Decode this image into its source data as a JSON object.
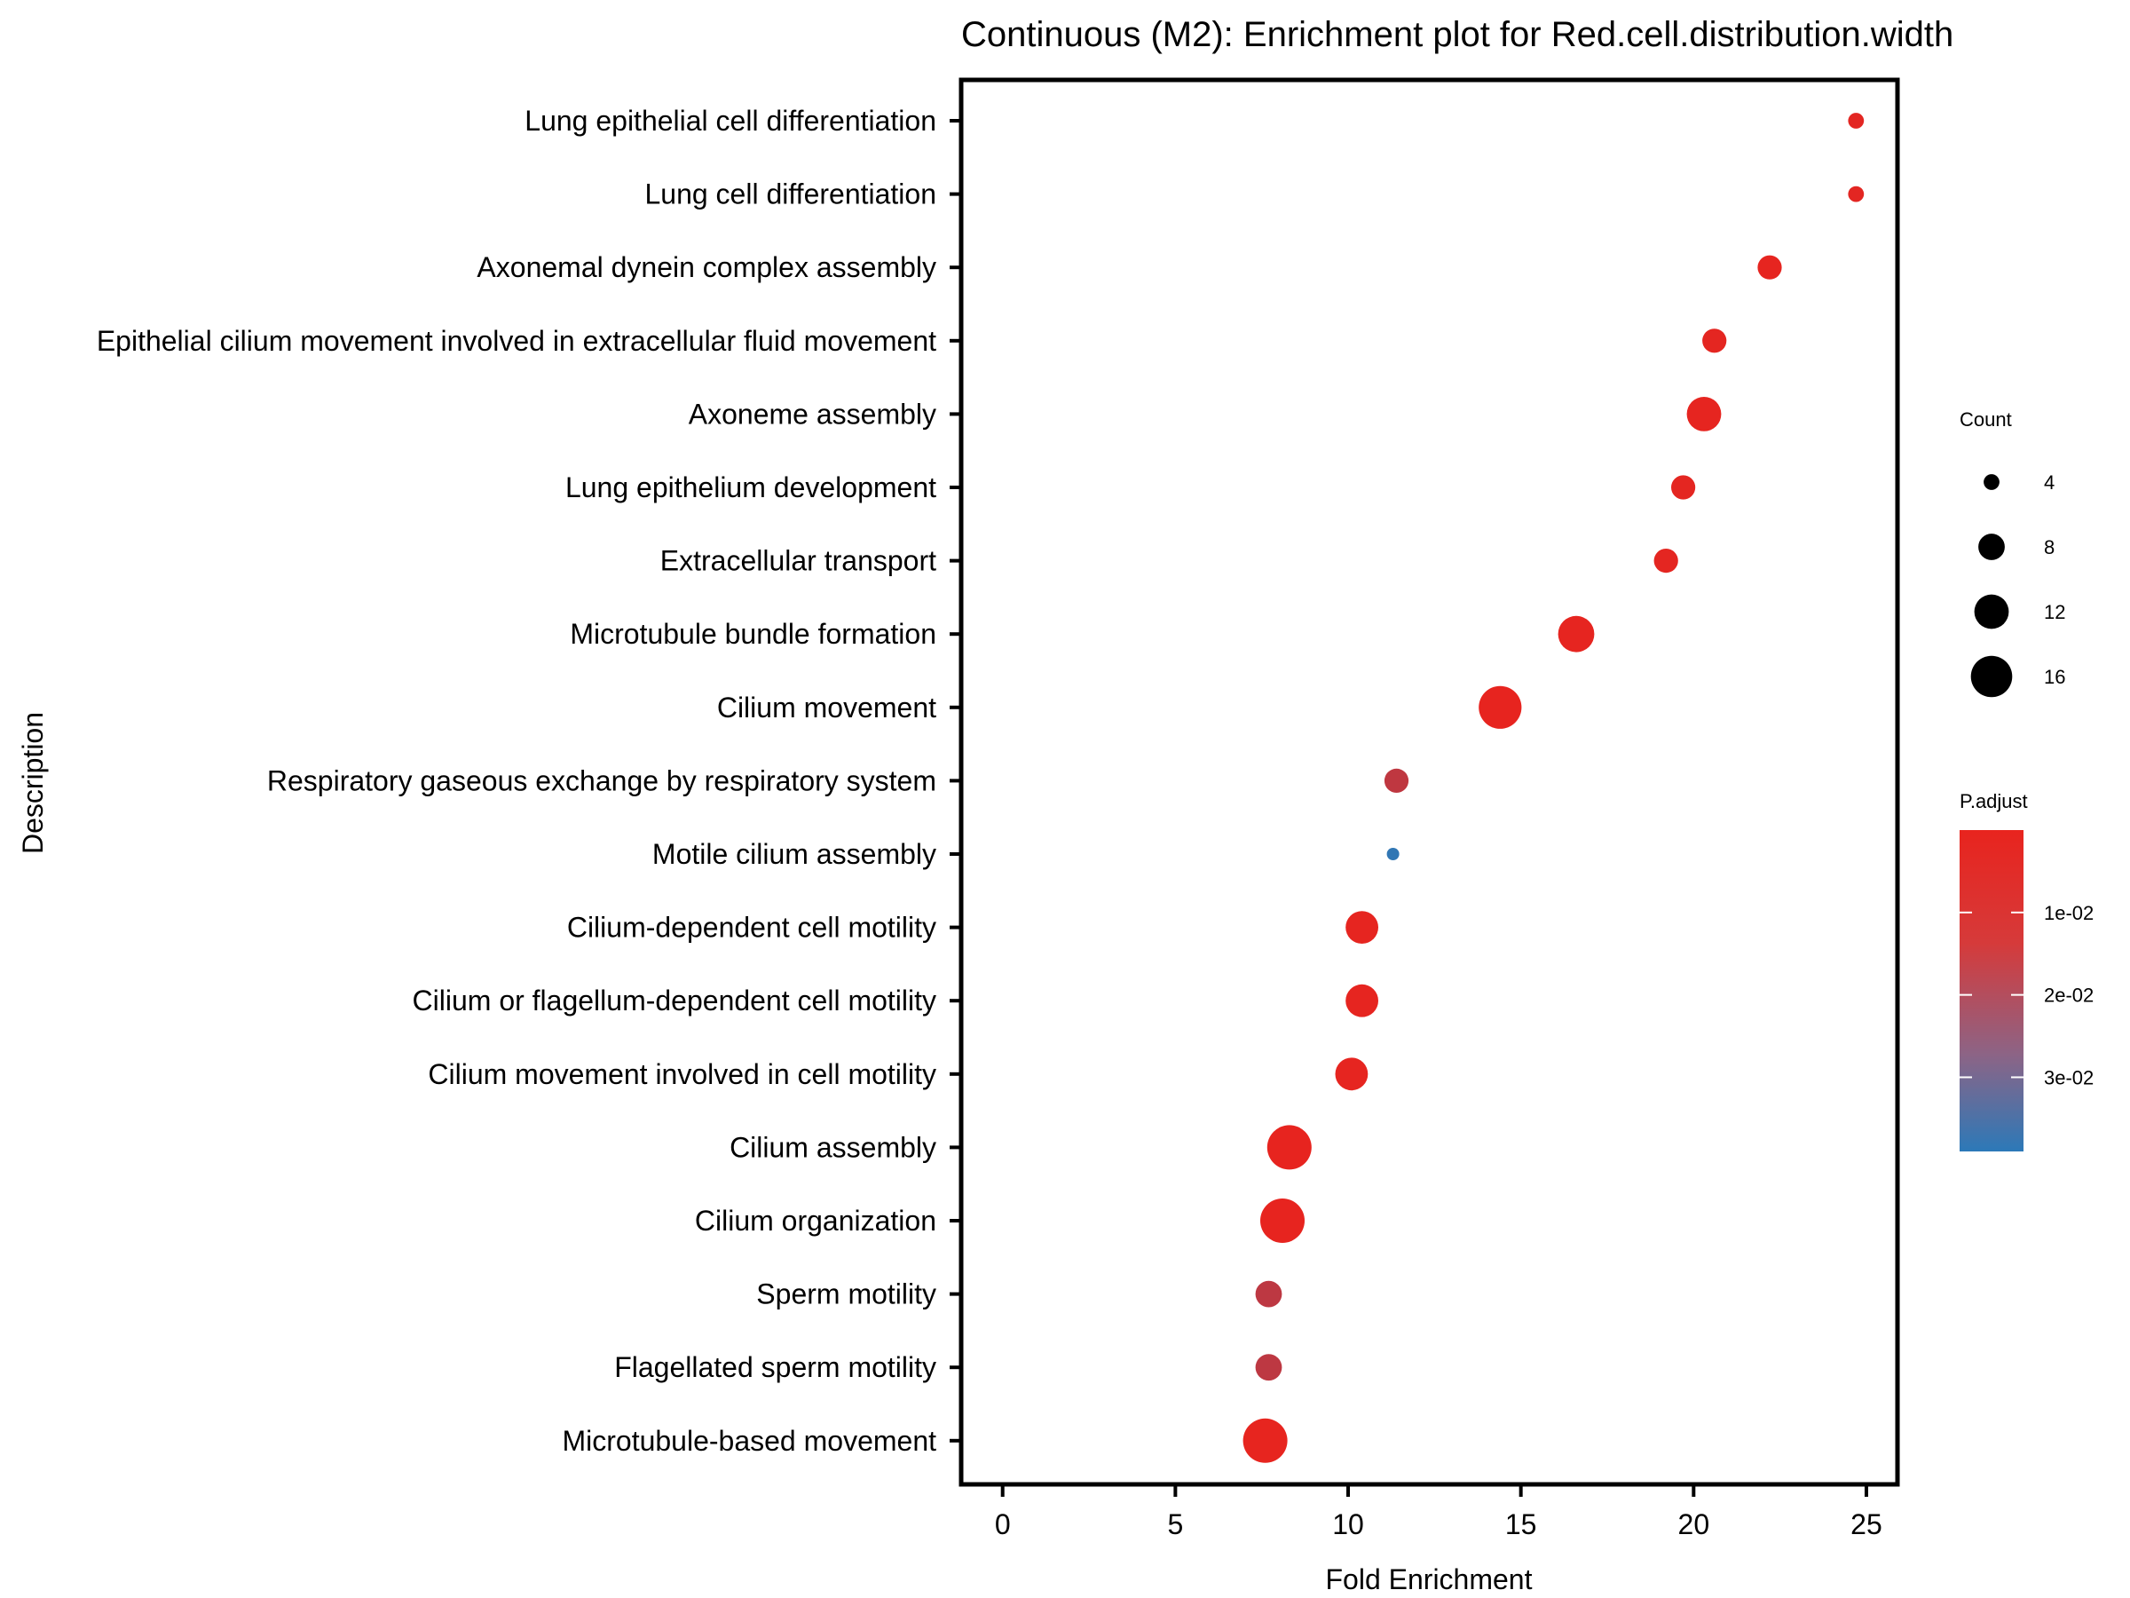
{
  "chart_data": {
    "type": "scatter",
    "title": "Continuous (M2): Enrichment plot for Red.cell.distribution.width",
    "xlabel": "Fold Enrichment",
    "ylabel": "Description",
    "xlim": [
      -1.2,
      25.9
    ],
    "xticks": [
      0,
      5,
      10,
      15,
      20,
      25
    ],
    "grid": false,
    "categories": [
      "Lung epithelial cell differentiation",
      "Lung cell differentiation",
      "Axonemal dynein complex assembly",
      "Epithelial cilium movement involved in extracellular fluid movement",
      "Axoneme assembly",
      "Lung epithelium development",
      "Extracellular transport",
      "Microtubule bundle formation",
      "Cilium movement",
      "Respiratory gaseous exchange by respiratory system",
      "Motile cilium assembly",
      "Cilium-dependent cell motility",
      "Cilium or flagellum-dependent cell motility",
      "Cilium movement involved in cell motility",
      "Cilium assembly",
      "Cilium organization",
      "Sperm motility",
      "Flagellated sperm motility",
      "Microtubule-based movement"
    ],
    "points": [
      {
        "category": "Lung epithelial cell differentiation",
        "x": 24.7,
        "count": 4,
        "p_adjust": 0.001
      },
      {
        "category": "Lung cell differentiation",
        "x": 24.7,
        "count": 4,
        "p_adjust": 0.001
      },
      {
        "category": "Axonemal dynein complex assembly",
        "x": 22.2,
        "count": 7,
        "p_adjust": 0.0005
      },
      {
        "category": "Epithelial cilium movement involved in extracellular fluid movement",
        "x": 20.6,
        "count": 7,
        "p_adjust": 0.0008
      },
      {
        "category": "Axoneme assembly",
        "x": 20.3,
        "count": 12,
        "p_adjust": 0.0004
      },
      {
        "category": "Lung epithelium development",
        "x": 19.7,
        "count": 7,
        "p_adjust": 0.0008
      },
      {
        "category": "Extracellular transport",
        "x": 19.2,
        "count": 7,
        "p_adjust": 0.0008
      },
      {
        "category": "Microtubule bundle formation",
        "x": 16.6,
        "count": 13,
        "p_adjust": 0.0004
      },
      {
        "category": "Cilium movement",
        "x": 14.4,
        "count": 17,
        "p_adjust": 0.0002
      },
      {
        "category": "Respiratory gaseous exchange by respiratory system",
        "x": 11.4,
        "count": 7,
        "p_adjust": 0.0085
      },
      {
        "category": "Motile cilium assembly",
        "x": 11.3,
        "count": 3,
        "p_adjust": 0.038
      },
      {
        "category": "Cilium-dependent cell motility",
        "x": 10.4,
        "count": 11,
        "p_adjust": 0.0004
      },
      {
        "category": "Cilium or flagellum-dependent cell motility",
        "x": 10.4,
        "count": 11,
        "p_adjust": 0.0004
      },
      {
        "category": "Cilium movement involved in cell motility",
        "x": 10.1,
        "count": 11,
        "p_adjust": 0.0004
      },
      {
        "category": "Cilium assembly",
        "x": 8.3,
        "count": 18,
        "p_adjust": 0.0002
      },
      {
        "category": "Cilium organization",
        "x": 8.1,
        "count": 18,
        "p_adjust": 0.0002
      },
      {
        "category": "Sperm motility",
        "x": 7.7,
        "count": 8,
        "p_adjust": 0.009
      },
      {
        "category": "Flagellated sperm motility",
        "x": 7.7,
        "count": 8,
        "p_adjust": 0.009
      },
      {
        "category": "Microtubule-based movement",
        "x": 7.6,
        "count": 18,
        "p_adjust": 0.0003
      }
    ],
    "size_legend": {
      "title": "Count",
      "values": [
        4,
        8,
        12,
        16
      ],
      "labels": [
        "4",
        "8",
        "12",
        "16"
      ]
    },
    "color_legend": {
      "title": "P.adjust",
      "range": [
        0,
        0.039
      ],
      "ticks": [
        0.01,
        0.02,
        0.03
      ],
      "labels": [
        "1e-02",
        "2e-02",
        "3e-02"
      ],
      "low_color": "#e8241e",
      "high_color": "#2c79b8"
    },
    "legend_position": "right"
  }
}
